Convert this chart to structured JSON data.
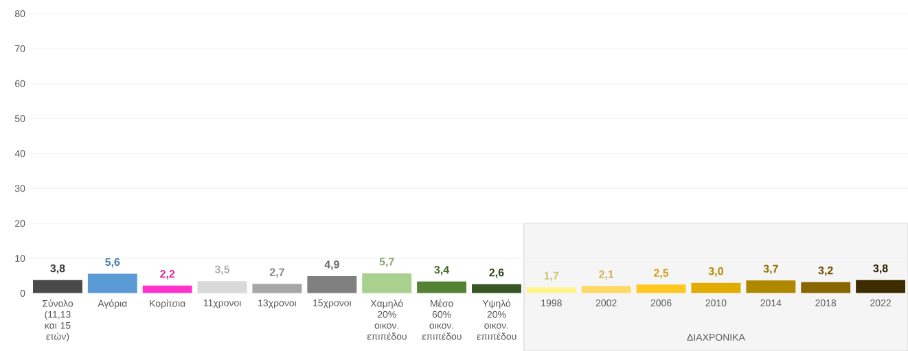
{
  "chart_data": {
    "type": "bar",
    "categories": [
      "Σύνολο (11,13 και 15 ετών)",
      "Αγόρια",
      "Κορίτσια",
      "11χρονοι",
      "13χρονοι",
      "15χρονοι",
      "Χαμηλό 20% οικον. επιπέδου",
      "Μέσο 60% οικον. επιπέδου",
      "Υψηλό 20% οικον. επιπέδου",
      "1998",
      "2002",
      "2006",
      "2010",
      "2014",
      "2018",
      "2022"
    ],
    "values": [
      3.8,
      5.6,
      2.2,
      3.5,
      2.7,
      4.9,
      5.7,
      3.4,
      2.6,
      1.7,
      2.1,
      2.5,
      3.0,
      3.7,
      3.2,
      3.8
    ],
    "value_labels": [
      "3,8",
      "5,6",
      "2,2",
      "3,5",
      "2,7",
      "4,9",
      "5,7",
      "3,4",
      "2,6",
      "1,7",
      "2,1",
      "2,5",
      "3,0",
      "3,7",
      "3,2",
      "3,8"
    ],
    "colors": [
      "#4a4a4a",
      "#5b9bd5",
      "#ff33cc",
      "#d9d9d9",
      "#a6a6a6",
      "#808080",
      "#a9d18e",
      "#548235",
      "#375623",
      "#fff48a",
      "#ffd966",
      "#ffc820",
      "#e0ac00",
      "#b08800",
      "#8a6600",
      "#3d2c00"
    ],
    "ylim": [
      0,
      80
    ],
    "yticks": [
      0,
      10,
      20,
      30,
      40,
      50,
      60,
      70,
      80
    ],
    "grid": "y",
    "bands": [
      {
        "axis": "x",
        "from": "1998",
        "to": "2022",
        "label": "ΔΙΑΧΡΟΝΙΚΑ",
        "color": "#f5f5f5"
      }
    ]
  }
}
